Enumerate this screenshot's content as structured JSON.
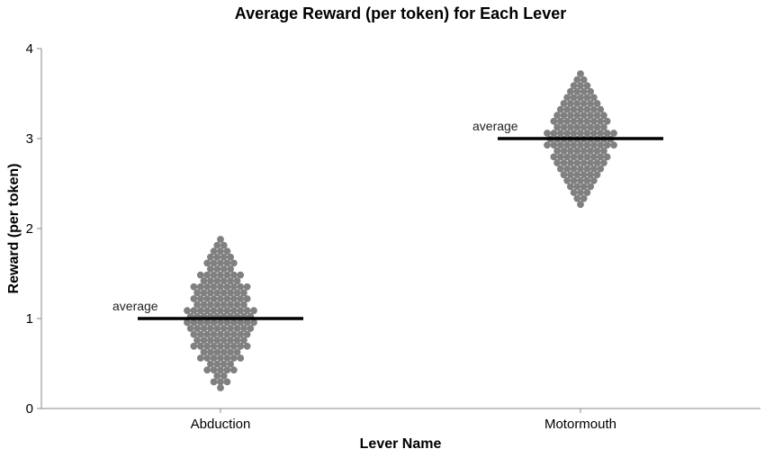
{
  "chart_data": {
    "type": "scatter",
    "subtype": "beeswarm",
    "title": "Average Reward (per token) for Each Lever",
    "xlabel": "Lever Name",
    "ylabel": "Reward (per token)",
    "ylim": [
      0,
      4
    ],
    "yticks": [
      "0",
      "1",
      "2",
      "3",
      "4"
    ],
    "grid": false,
    "categories": [
      "Abduction",
      "Motormouth"
    ],
    "point_color": "#808080",
    "mean_line_color": "#000000",
    "series": [
      {
        "category": "Abduction",
        "mean": 1.0,
        "mean_label": "average",
        "n_points": 100,
        "min": 0.22,
        "max": 1.88
      },
      {
        "category": "Motormouth",
        "mean": 3.0,
        "mean_label": "average",
        "n_points": 100,
        "min": 2.25,
        "max": 3.72
      }
    ]
  }
}
